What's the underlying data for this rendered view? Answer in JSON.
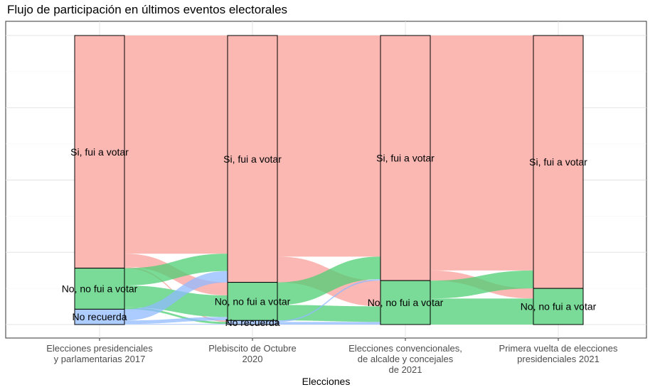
{
  "chart_data": {
    "type": "alluvial",
    "title": "Flujo de participación en últimos eventos electorales",
    "xlabel": "Elecciones",
    "ylabel": "",
    "grid": true,
    "legend": "none",
    "categories": [
      "Elecciones presidenciales\ny parlamentarias 2017",
      "Plebiscito de Octubre\n2020",
      "Elecciones convencionales,\nde alcalde y concejales\nde 2021",
      "Primera vuelta de elecciones\npresidenciales 2021"
    ],
    "strata": [
      {
        "name": "Sí, fui a votar",
        "label": "Si, fui a votar",
        "color": "#f8766d"
      },
      {
        "name": "No, no fui a votar",
        "label": "No, no fui a votar",
        "color": "#00ba38"
      },
      {
        "name": "No recuerda",
        "label": "No recuerda",
        "color": "#619cff"
      }
    ],
    "series": [
      {
        "name": "Sí, fui a votar",
        "values": [
          80.5,
          85.4,
          84.8,
          87.5
        ]
      },
      {
        "name": "No, no fui a votar",
        "values": [
          14.2,
          13.2,
          15.2,
          12.5
        ]
      },
      {
        "name": "No recuerda",
        "values": [
          5.3,
          1.4,
          0,
          0
        ]
      }
    ],
    "flows": [
      [
        {
          "from": "Sí, fui a votar",
          "to": "Sí, fui a votar",
          "value": 75.5
        },
        {
          "from": "Sí, fui a votar",
          "to": "No, no fui a votar",
          "value": 4.5
        },
        {
          "from": "Sí, fui a votar",
          "to": "No recuerda",
          "value": 0.5
        },
        {
          "from": "No, no fui a votar",
          "to": "Sí, fui a votar",
          "value": 6.0
        },
        {
          "from": "No, no fui a votar",
          "to": "No, no fui a votar",
          "value": 7.5
        },
        {
          "from": "No, no fui a votar",
          "to": "No recuerda",
          "value": 0.7
        },
        {
          "from": "No recuerda",
          "to": "Sí, fui a votar",
          "value": 3.9
        },
        {
          "from": "No recuerda",
          "to": "No, no fui a votar",
          "value": 1.2
        },
        {
          "from": "No recuerda",
          "to": "No recuerda",
          "value": 0.2
        }
      ],
      [
        {
          "from": "Sí, fui a votar",
          "to": "Sí, fui a votar",
          "value": 76.5
        },
        {
          "from": "Sí, fui a votar",
          "to": "No, no fui a votar",
          "value": 8.9
        },
        {
          "from": "No, no fui a votar",
          "to": "Sí, fui a votar",
          "value": 7.8
        },
        {
          "from": "No, no fui a votar",
          "to": "No, no fui a votar",
          "value": 5.4
        },
        {
          "from": "No recuerda",
          "to": "Sí, fui a votar",
          "value": 0.5
        },
        {
          "from": "No recuerda",
          "to": "No, no fui a votar",
          "value": 0.9
        }
      ],
      [
        {
          "from": "Sí, fui a votar",
          "to": "Sí, fui a votar",
          "value": 81.3
        },
        {
          "from": "Sí, fui a votar",
          "to": "No, no fui a votar",
          "value": 3.5
        },
        {
          "from": "No, no fui a votar",
          "to": "Sí, fui a votar",
          "value": 6.2
        },
        {
          "from": "No, no fui a votar",
          "to": "No, no fui a votar",
          "value": 9.0
        }
      ]
    ]
  }
}
